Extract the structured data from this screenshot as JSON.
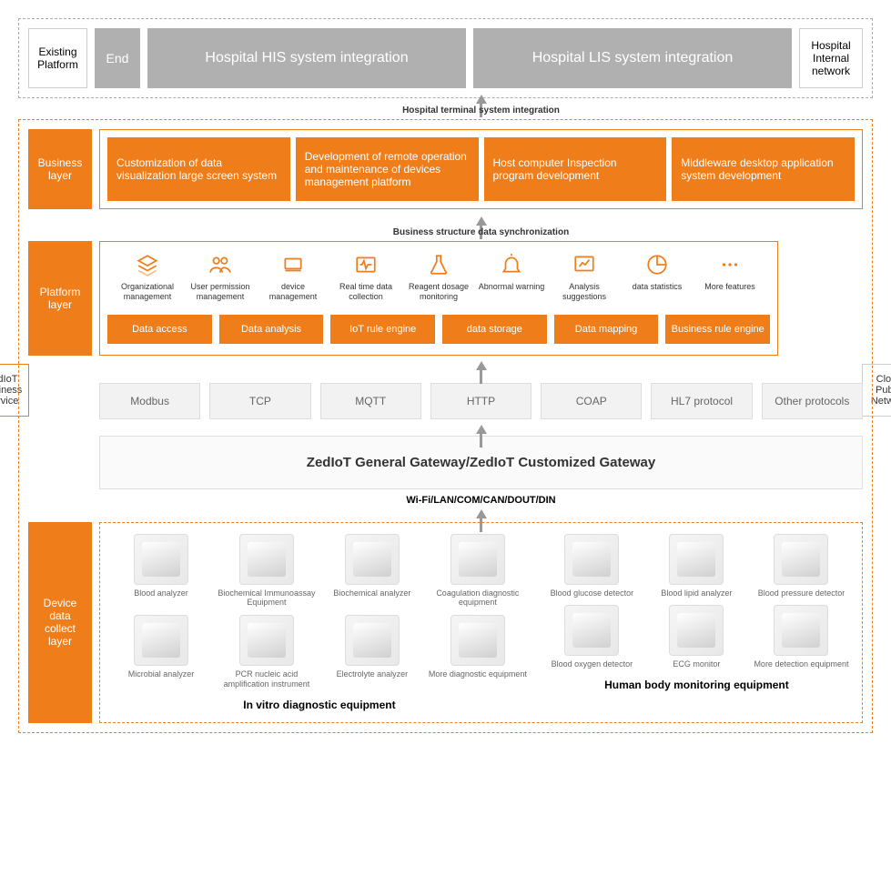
{
  "colors": {
    "accent": "#ef7d1a",
    "gray_box": "#b0b0b0",
    "proto_bg": "#f2f2f2",
    "text": "#333333"
  },
  "top": {
    "existing_platform": "Existing Platform",
    "end": "End",
    "his": "Hospital HIS system integration",
    "lis": "Hospital LIS system integration",
    "hospital_network": "Hospital Internal network"
  },
  "arrows": {
    "hospital_terminal": "Hospital terminal system integration",
    "business_sync": "Business structure data synchronization"
  },
  "side": {
    "left": "ZedIoT Business Service",
    "right": "Cloud Public Network"
  },
  "business": {
    "label": "Business layer",
    "items": [
      "Customization of data visualization large screen system",
      "Development of remote operation and maintenance of devices management platform",
      "Host computer Inspection program development",
      "Middleware desktop application system development"
    ]
  },
  "platform": {
    "label": "Platform layer",
    "icons": [
      {
        "name": "layers-icon",
        "label": "Organizational management"
      },
      {
        "name": "users-icon",
        "label": "User permission management"
      },
      {
        "name": "device-icon",
        "label": "device management"
      },
      {
        "name": "wave-icon",
        "label": "Real time data collection"
      },
      {
        "name": "flask-icon",
        "label": "Reagent dosage monitoring"
      },
      {
        "name": "bell-icon",
        "label": "Abnormal warning"
      },
      {
        "name": "chart-icon",
        "label": "Analysis suggestions"
      },
      {
        "name": "pie-icon",
        "label": "data statistics"
      },
      {
        "name": "more-icon",
        "label": "More features"
      }
    ],
    "bars": [
      "Data access",
      "Data analysis",
      "IoT rule engine",
      "data storage",
      "Data mapping",
      "Business rule engine"
    ]
  },
  "protocols": [
    "Modbus",
    "TCP",
    "MQTT",
    "HTTP",
    "COAP",
    "HL7 protocol",
    "Other protocols"
  ],
  "gateway": {
    "title": "ZedIoT General Gateway/ZedIoT Customized Gateway",
    "conn": "Wi-Fi/LAN/COM/CAN/DOUT/DIN"
  },
  "device": {
    "label": "Device data collect layer",
    "group1": {
      "title": "In vitro diagnostic equipment",
      "items": [
        "Blood analyzer",
        "Biochemical Immunoassay Equipment",
        "Biochemical analyzer",
        "Coagulation diagnostic equipment",
        "Microbial analyzer",
        "PCR nucleic acid amplification instrument",
        "Electrolyte analyzer",
        "More diagnostic equipment"
      ]
    },
    "group2": {
      "title": "Human body monitoring equipment",
      "items": [
        "Blood glucose detector",
        "Blood lipid analyzer",
        "Blood pressure detector",
        "Blood oxygen detector",
        "ECG monitor",
        "More detection equipment"
      ]
    }
  }
}
